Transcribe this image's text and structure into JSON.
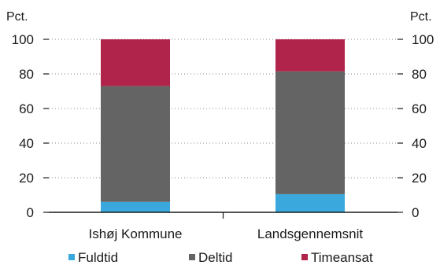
{
  "chart_data": {
    "type": "bar",
    "stacked": true,
    "categories": [
      "Ishøj Kommune",
      "Landsgennemsnit"
    ],
    "series": [
      {
        "name": "Fuldtid",
        "values": [
          6,
          10.5
        ],
        "color": "#3aa8dc"
      },
      {
        "name": "Deltid",
        "values": [
          67,
          71
        ],
        "color": "#646464"
      },
      {
        "name": "Timeansat",
        "values": [
          27,
          18.5
        ],
        "color": "#b0234a"
      }
    ],
    "ylabel_left": "Pct.",
    "ylabel_right": "Pct.",
    "ylim": [
      0,
      100
    ],
    "yticks": [
      "0",
      "20",
      "40",
      "60",
      "80",
      "100"
    ],
    "grid": false,
    "legend_position": "bottom"
  }
}
